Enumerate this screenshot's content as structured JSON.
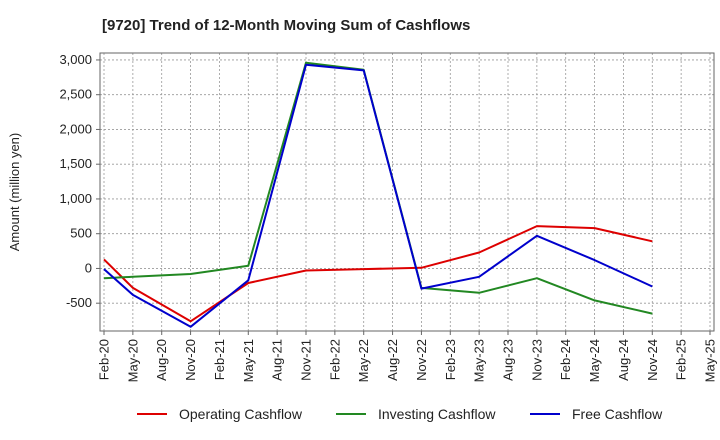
{
  "chart_data": {
    "type": "line",
    "title": "[9720]  Trend of 12-Month Moving Sum of Cashflows",
    "xlabel": "",
    "ylabel": "Amount (million yen)",
    "ylim": [
      -900,
      3100
    ],
    "yticks": [
      3000,
      2500,
      2000,
      1500,
      1000,
      500,
      0,
      -500
    ],
    "ytick_labels": [
      "3,000",
      "2,500",
      "2,000",
      "1,500",
      "1,000",
      "500",
      "0",
      "-500"
    ],
    "categories": [
      "Feb-20",
      "May-20",
      "Aug-20",
      "Nov-20",
      "Feb-21",
      "May-21",
      "Aug-21",
      "Nov-21",
      "Feb-22",
      "May-22",
      "Aug-22",
      "Nov-22",
      "Feb-23",
      "May-23",
      "Aug-23",
      "Nov-23",
      "Feb-24",
      "May-24",
      "Aug-24",
      "Nov-24",
      "Feb-25",
      "May-25"
    ],
    "grid": true,
    "legend_position": "bottom",
    "series": [
      {
        "name": "Operating Cashflow",
        "color": "#dd0000",
        "values": [
          130,
          -280,
          null,
          -760,
          null,
          -210,
          null,
          -30,
          null,
          -10,
          null,
          10,
          null,
          230,
          null,
          610,
          null,
          580,
          null,
          390,
          null,
          null
        ]
      },
      {
        "name": "Investing Cashflow",
        "color": "#228822",
        "values": [
          -140,
          -120,
          null,
          -80,
          null,
          40,
          null,
          2960,
          null,
          2860,
          null,
          -280,
          null,
          -350,
          null,
          -140,
          null,
          -460,
          null,
          -650,
          null,
          null
        ]
      },
      {
        "name": "Free Cashflow",
        "color": "#0000cc",
        "values": [
          -10,
          -380,
          null,
          -840,
          null,
          -170,
          null,
          2930,
          null,
          2850,
          null,
          -290,
          null,
          -120,
          null,
          470,
          null,
          120,
          null,
          -260,
          null,
          null
        ]
      }
    ]
  }
}
